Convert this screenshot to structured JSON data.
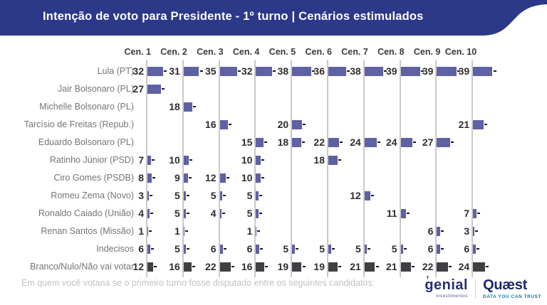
{
  "header": {
    "title": "Intenção de voto para Presidente - 1º turno | Cenários estimulados"
  },
  "chart_data": {
    "type": "bar",
    "orientation": "horizontal",
    "unit": "%",
    "title": "Intenção de voto para Presidente - 1º turno | Cenários estimulados",
    "categories": [
      "Cen. 1",
      "Cen. 2",
      "Cen. 3",
      "Cen. 4",
      "Cen. 5",
      "Cen. 6",
      "Cen. 7",
      "Cen. 8",
      "Cen. 9",
      "Cen. 10"
    ],
    "series": [
      {
        "name": "Lula (PT)",
        "values": [
          32,
          31,
          35,
          32,
          38,
          36,
          38,
          39,
          39,
          39
        ]
      },
      {
        "name": "Jair Bolsonaro (PL)",
        "values": [
          27,
          null,
          null,
          null,
          null,
          null,
          null,
          null,
          null,
          null
        ]
      },
      {
        "name": "Michelle Bolsonaro (PL)",
        "values": [
          null,
          18,
          null,
          null,
          null,
          null,
          null,
          null,
          null,
          null
        ]
      },
      {
        "name": "Tarcísio de Freitas (Repub.)",
        "values": [
          null,
          null,
          16,
          null,
          20,
          null,
          null,
          null,
          null,
          21
        ]
      },
      {
        "name": "Eduardo Bolsonaro (PL)",
        "values": [
          null,
          null,
          null,
          15,
          18,
          22,
          24,
          24,
          27,
          null
        ]
      },
      {
        "name": "Ratinho Júnior (PSD)",
        "values": [
          7,
          10,
          null,
          10,
          null,
          18,
          null,
          null,
          null,
          null
        ]
      },
      {
        "name": "Ciro Gomes (PSDB)",
        "values": [
          8,
          9,
          12,
          10,
          null,
          null,
          null,
          null,
          null,
          null
        ]
      },
      {
        "name": "Romeu Zema (Novo)",
        "values": [
          3,
          5,
          5,
          5,
          null,
          null,
          12,
          null,
          null,
          null
        ]
      },
      {
        "name": "Ronaldo Caiado (União)",
        "values": [
          4,
          5,
          4,
          5,
          null,
          null,
          null,
          11,
          null,
          7
        ]
      },
      {
        "name": "Renan Santos (Missão)",
        "values": [
          1,
          1,
          null,
          1,
          null,
          null,
          null,
          null,
          6,
          3
        ]
      },
      {
        "name": "Indecisos",
        "values": [
          6,
          5,
          6,
          6,
          5,
          5,
          5,
          5,
          6,
          6
        ]
      },
      {
        "name": "Branco/Nulo/Não vai votar",
        "values": [
          12,
          16,
          22,
          16,
          19,
          19,
          21,
          21,
          22,
          24
        ]
      }
    ],
    "legend": "none",
    "axis_range": [
      0,
      50
    ],
    "notes": "one vertical baseline per scenario column; bars grow right; small black whisker at each bar end"
  },
  "colors": {
    "banner": "#2c3888",
    "title_text": "#ffffff",
    "bar_default": "#5e61a4",
    "bar_last_row": "#3f4043",
    "axis_line": "#c9c9c9",
    "value_text": "#2e2e2e",
    "marker": "#1a1a1a",
    "row_label": "#757575",
    "column_header": "#3b3b3b",
    "footer_note": "#c2c2c2"
  },
  "footer": {
    "note": "Em quem você votaria se o primeiro turno fosse disputado entre os seguintes candidatos:",
    "logos": {
      "genial": {
        "name": "genial",
        "mark": "ʼ",
        "sub": "investimentos"
      },
      "quaest": {
        "name": "Quæst",
        "sub": "DATA YOU CAN TRUST"
      }
    }
  }
}
